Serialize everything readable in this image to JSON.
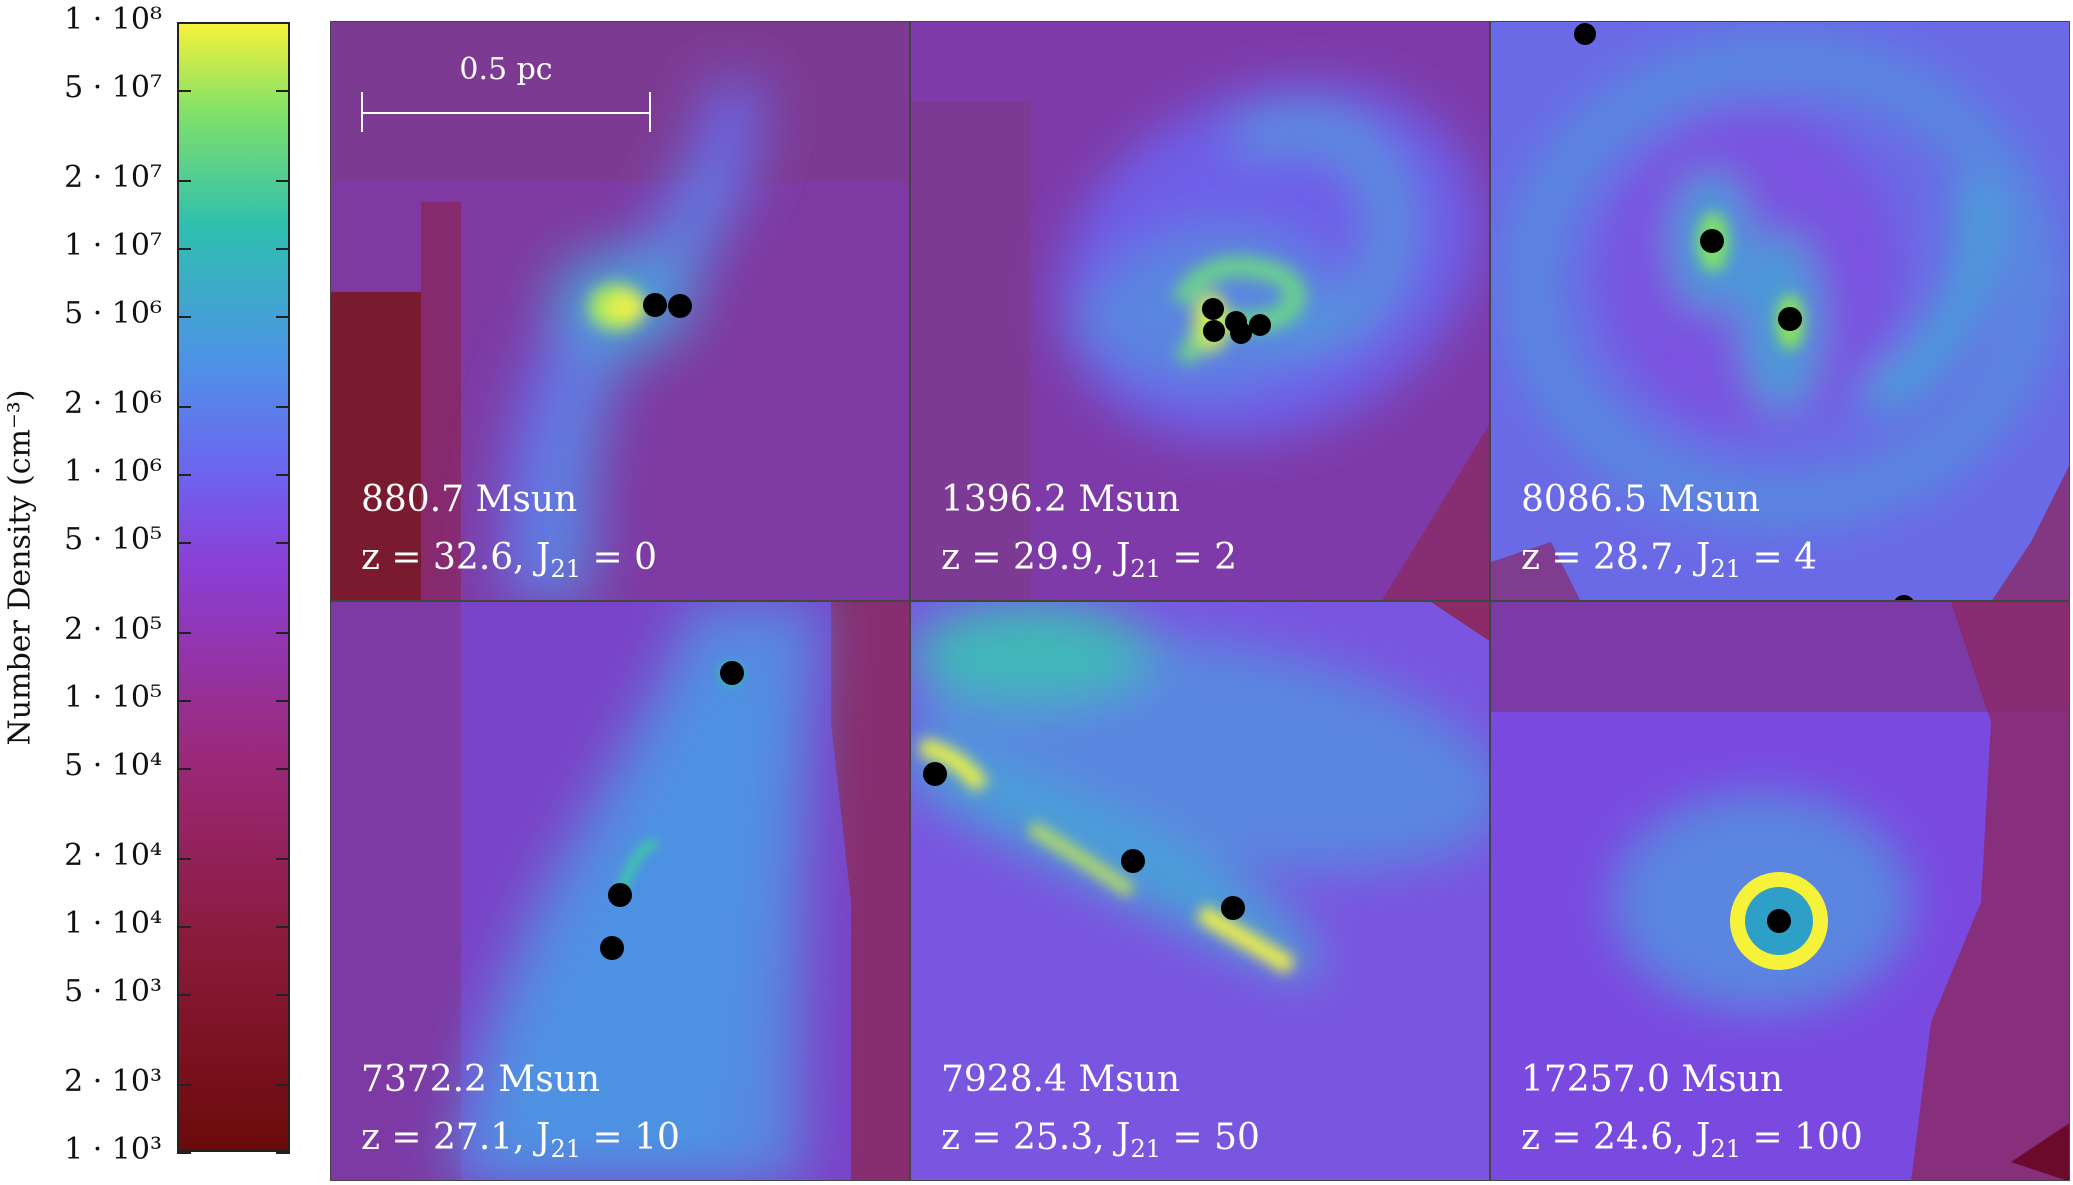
{
  "colorbar": {
    "title": "Number Density (cm⁻³)",
    "ticks": [
      {
        "label": "1 · 10⁸",
        "value": 100000000
      },
      {
        "label": "5 · 10⁷",
        "value": 50000000
      },
      {
        "label": "2 · 10⁷",
        "value": 20000000
      },
      {
        "label": "1 · 10⁷",
        "value": 10000000
      },
      {
        "label": "5 · 10⁶",
        "value": 5000000
      },
      {
        "label": "2 · 10⁶",
        "value": 2000000
      },
      {
        "label": "1 · 10⁶",
        "value": 1000000
      },
      {
        "label": "5 · 10⁵",
        "value": 500000
      },
      {
        "label": "2 · 10⁵",
        "value": 200000
      },
      {
        "label": "1 · 10⁵",
        "value": 100000
      },
      {
        "label": "5 · 10⁴",
        "value": 50000
      },
      {
        "label": "2 · 10⁴",
        "value": 20000
      },
      {
        "label": "1 · 10⁴",
        "value": 10000
      },
      {
        "label": "5 · 10³",
        "value": 5000
      },
      {
        "label": "2 · 10³",
        "value": 2000
      },
      {
        "label": "1 · 10³",
        "value": 1000
      }
    ],
    "range": [
      1000,
      100000000
    ],
    "scale": "log",
    "colors": [
      "#6b0a0a",
      "#8a1a3a",
      "#9b2a7f",
      "#8a3fd6",
      "#6e63f0",
      "#4e92e6",
      "#2fbfb0",
      "#7fe06a",
      "#f6f23a"
    ]
  },
  "scale_bar_label": "0.5 pc",
  "panels": [
    {
      "mass": "880.7 Msun",
      "z": "z = 32.6, J",
      "j_sub": "21",
      "j_val": " = 0"
    },
    {
      "mass": "1396.2 Msun",
      "z": "z = 29.9, J",
      "j_sub": "21",
      "j_val": " = 2"
    },
    {
      "mass": "8086.5 Msun",
      "z": "z = 28.7, J",
      "j_sub": "21",
      "j_val": " = 4"
    },
    {
      "mass": "7372.2 Msun",
      "z": "z = 27.1, J",
      "j_sub": "21",
      "j_val": " = 10"
    },
    {
      "mass": "7928.4 Msun",
      "z": "z = 25.3, J",
      "j_sub": "21",
      "j_val": " = 50"
    },
    {
      "mass": "17257.0 Msun",
      "z": "z = 24.6, J",
      "j_sub": "21",
      "j_val": " = 100"
    }
  ]
}
